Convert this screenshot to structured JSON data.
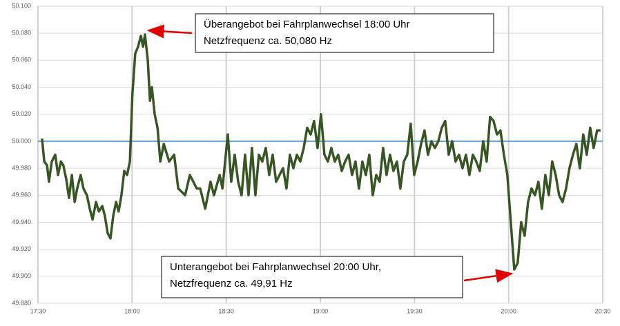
{
  "chart_data": {
    "type": "line",
    "color": "#375623",
    "xlim": [
      1050,
      1230
    ],
    "xticks": [
      {
        "value": 1050,
        "label": "17:30"
      },
      {
        "value": 1080,
        "label": "18:00"
      },
      {
        "value": 1110,
        "label": "18:30"
      },
      {
        "value": 1140,
        "label": "19:00"
      },
      {
        "value": 1170,
        "label": "19:30"
      },
      {
        "value": 1200,
        "label": "20:00"
      },
      {
        "value": 1230,
        "label": "20:30"
      }
    ],
    "ylim": [
      49.88,
      50.1
    ],
    "yticks": [
      {
        "value": 49.88,
        "label": "49.880"
      },
      {
        "value": 49.9,
        "label": "49.900"
      },
      {
        "value": 49.92,
        "label": "49.920"
      },
      {
        "value": 49.94,
        "label": "49.940"
      },
      {
        "value": 49.96,
        "label": "49.960"
      },
      {
        "value": 49.98,
        "label": "49.980"
      },
      {
        "value": 50.0,
        "label": "50.000"
      },
      {
        "value": 50.02,
        "label": "50.020"
      },
      {
        "value": 50.04,
        "label": "50.040"
      },
      {
        "value": 50.06,
        "label": "50.060"
      },
      {
        "value": 50.08,
        "label": "50.080"
      },
      {
        "value": 50.1,
        "label": "50.100"
      }
    ],
    "grid": true,
    "reference_lines": [
      {
        "y": 50.0,
        "color": "#5b9bd5"
      }
    ],
    "x": [
      1051.3,
      1052.0,
      1052.9,
      1053.5,
      1054.4,
      1055.5,
      1056.4,
      1057.3,
      1058.1,
      1059.0,
      1059.9,
      1060.8,
      1061.7,
      1062.5,
      1063.6,
      1064.5,
      1065.6,
      1066.5,
      1067.4,
      1068.5,
      1069.4,
      1070.5,
      1071.3,
      1072.2,
      1073.1,
      1074.0,
      1074.9,
      1075.7,
      1076.6,
      1077.5,
      1078.4,
      1079.3,
      1080.1,
      1081.0,
      1081.9,
      1082.8,
      1083.5,
      1084.1,
      1085.0,
      1085.7,
      1086.3,
      1087.2,
      1088.1,
      1089.0,
      1090.1,
      1091.8,
      1093.4,
      1094.7,
      1096.9,
      1098.4,
      1100.6,
      1101.7,
      1103.3,
      1105.0,
      1106.1,
      1107.9,
      1108.8,
      1110.5,
      1111.6,
      1112.7,
      1113.8,
      1114.9,
      1116.0,
      1117.1,
      1118.2,
      1119.3,
      1120.4,
      1121.5,
      1122.6,
      1123.7,
      1124.8,
      1125.9,
      1127.0,
      1128.1,
      1129.2,
      1130.3,
      1131.4,
      1132.5,
      1133.6,
      1134.7,
      1135.8,
      1136.9,
      1138.0,
      1139.1,
      1140.2,
      1141.3,
      1142.4,
      1143.5,
      1144.6,
      1145.7,
      1146.8,
      1147.9,
      1149.0,
      1150.1,
      1151.2,
      1152.3,
      1153.4,
      1154.5,
      1155.6,
      1156.7,
      1157.8,
      1158.9,
      1160.0,
      1161.1,
      1162.2,
      1163.3,
      1164.4,
      1165.5,
      1166.6,
      1167.7,
      1168.8,
      1169.9,
      1171.0,
      1172.1,
      1173.2,
      1174.3,
      1175.4,
      1176.5,
      1177.6,
      1178.7,
      1179.8,
      1180.9,
      1182.0,
      1183.1,
      1184.2,
      1185.3,
      1186.4,
      1187.5,
      1188.6,
      1189.7,
      1190.8,
      1191.9,
      1193.0,
      1194.1,
      1195.2,
      1196.3,
      1197.4,
      1198.5,
      1199.6,
      1200.7,
      1201.8,
      1202.9,
      1204.0,
      1205.1,
      1206.2,
      1207.3,
      1208.4,
      1209.5,
      1210.6,
      1211.7,
      1212.8,
      1213.9,
      1215.0,
      1216.1,
      1217.2,
      1218.3,
      1219.4,
      1220.5,
      1221.6,
      1222.7,
      1223.8,
      1224.9,
      1226.0,
      1227.1,
      1228.2,
      1229.3
    ],
    "values": [
      50.002,
      49.985,
      49.982,
      49.97,
      49.985,
      49.99,
      49.975,
      49.985,
      49.982,
      49.972,
      49.958,
      49.975,
      49.955,
      49.965,
      49.975,
      49.965,
      49.96,
      49.95,
      49.942,
      49.955,
      49.948,
      49.952,
      49.945,
      49.932,
      49.928,
      49.945,
      49.955,
      49.948,
      49.96,
      49.978,
      49.975,
      49.985,
      50.035,
      50.065,
      50.07,
      50.078,
      50.07,
      50.079,
      50.06,
      50.03,
      50.04,
      50.02,
      50.01,
      49.985,
      49.998,
      49.985,
      49.99,
      49.965,
      49.96,
      49.975,
      49.965,
      49.965,
      49.95,
      49.97,
      49.96,
      49.975,
      49.965,
      50.005,
      49.97,
      49.99,
      49.97,
      49.96,
      49.99,
      49.96,
      49.995,
      49.96,
      49.99,
      49.985,
      49.995,
      49.975,
      49.99,
      49.97,
      49.975,
      49.98,
      49.965,
      49.99,
      49.98,
      49.99,
      49.985,
      49.995,
      50.01,
      50.005,
      50.015,
      49.995,
      50.02,
      49.99,
      49.985,
      49.995,
      49.985,
      49.99,
      49.978,
      49.985,
      49.99,
      49.975,
      49.985,
      49.965,
      49.985,
      49.975,
      49.99,
      49.96,
      49.975,
      49.97,
      49.995,
      49.975,
      49.99,
      49.978,
      49.985,
      49.965,
      49.985,
      49.99,
      50.013,
      49.975,
      49.985,
      49.998,
      50.008,
      49.99,
      50.0,
      49.995,
      50.0,
      50.01,
      50.015,
      49.99,
      50.0,
      49.985,
      49.99,
      49.98,
      49.99,
      49.975,
      49.99,
      49.985,
      49.978,
      50.0,
      49.985,
      50.018,
      50.015,
      50.005,
      50.008,
      49.99,
      49.975,
      49.94,
      49.905,
      49.91,
      49.94,
      49.93,
      49.955,
      49.965,
      49.96,
      49.97,
      49.95,
      49.975,
      49.96,
      49.985,
      49.975,
      49.96,
      49.955,
      49.965,
      49.98,
      49.99,
      49.998,
      49.98,
      50.005,
      49.99,
      50.01,
      49.995,
      50.008,
      50.008
    ],
    "annotations": [
      {
        "lines": [
          "Überangebot bei Fahrplanwechsel 18:00 Uhr",
          "Netzfrequenz ca. 50,080 Hz"
        ],
        "x": 1084.1,
        "y": 50.079
      },
      {
        "lines": [
          "Unterangebot bei Fahrplanwechsel 20:00 Uhr,",
          "Netzfrequenz ca. 49,91 Hz"
        ],
        "x": 1201.8,
        "y": 49.905
      }
    ]
  }
}
